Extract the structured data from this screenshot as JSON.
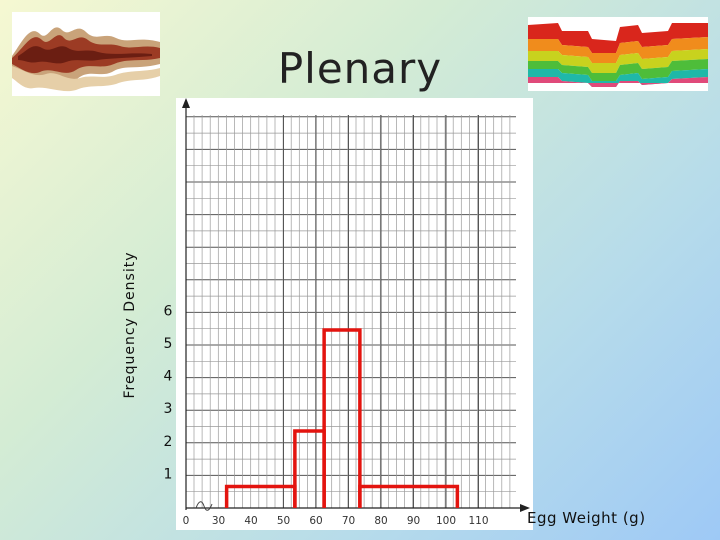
{
  "slide": {
    "title": "Plenary"
  },
  "chart_data": {
    "type": "histogram",
    "xlabel": "Egg Weight (g)",
    "ylabel": "Frequency Density",
    "x_tick_labels": [
      0,
      30,
      40,
      50,
      60,
      70,
      80,
      90,
      100,
      110
    ],
    "y_tick_labels": [
      1,
      2,
      3,
      4,
      5,
      6
    ],
    "bars": [
      {
        "x0": 32.5,
        "x1": 53.5,
        "height": 0.6
      },
      {
        "x0": 53.5,
        "x1": 62.5,
        "height": 2.3
      },
      {
        "x0": 62.5,
        "x1": 73.5,
        "height": 5.4
      },
      {
        "x0": 73.5,
        "x1": 103.5,
        "height": 0.6
      }
    ],
    "x_axis_break": true,
    "grid": true,
    "bar_color": "#e3140f",
    "gridline_color": "#8c8c8c"
  }
}
